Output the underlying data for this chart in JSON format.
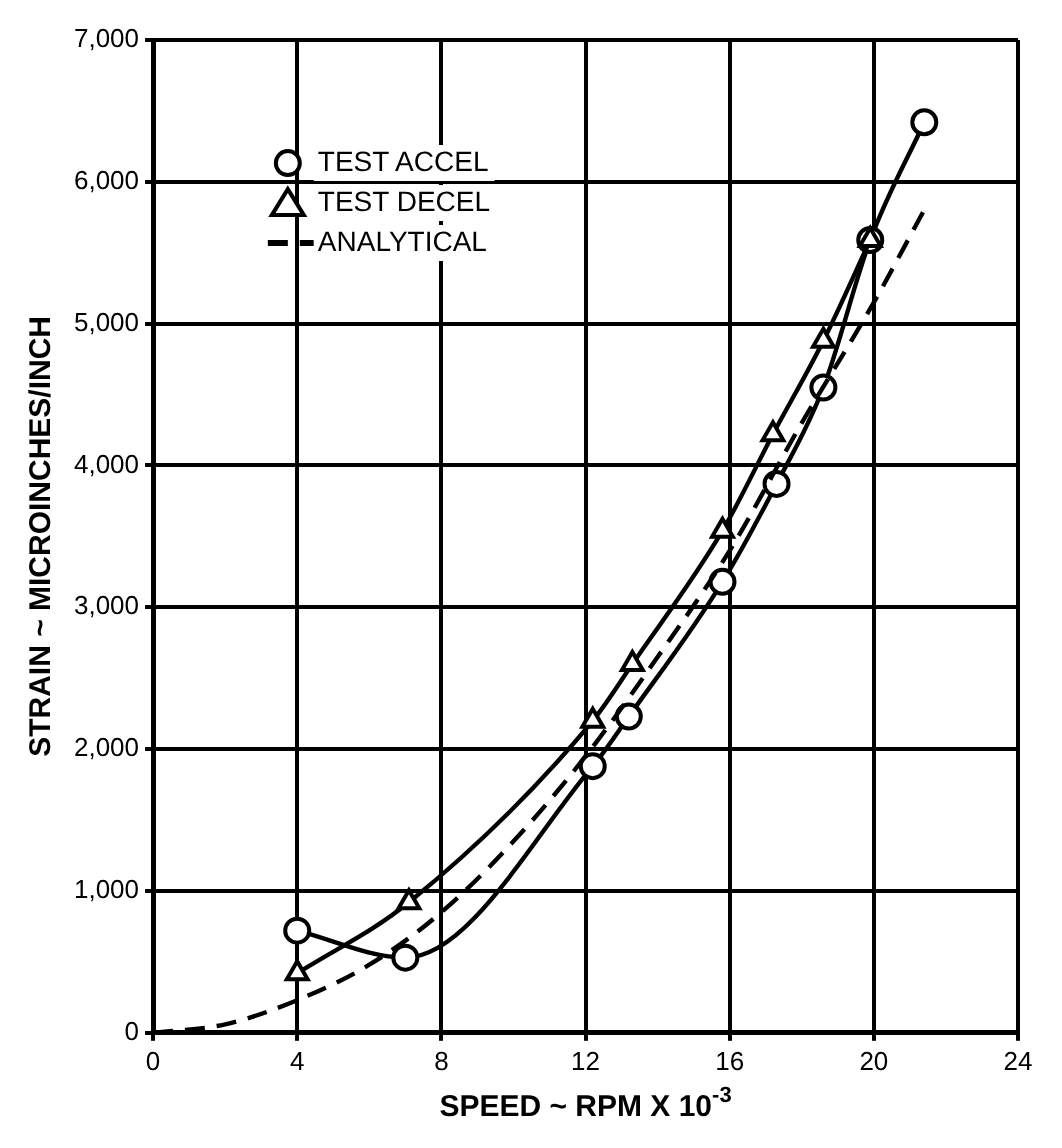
{
  "chart_data": {
    "type": "line",
    "xlabel": "SPEED ~ RPM X 10$^{-3}$",
    "ylabel": "STRAIN ~ MICROINCHES/INCH",
    "series": [
      {
        "name": "TEST ACCEL",
        "color": "#000000",
        "marker": "circle",
        "line_style": "solid",
        "x": [
          4,
          7,
          12.2,
          13.2,
          15.8,
          17.3,
          18.6,
          19.9,
          21.4
        ],
        "values": [
          720,
          530,
          1880,
          2230,
          3180,
          3870,
          4550,
          5590,
          6420
        ]
      },
      {
        "name": "TEST DECEL",
        "color": "#000000",
        "marker": "triangle",
        "line_style": "solid",
        "x": [
          4,
          7.1,
          12.2,
          13.3,
          15.8,
          17.2,
          18.6,
          19.9
        ],
        "values": [
          420,
          920,
          2200,
          2600,
          3540,
          4220,
          4880,
          5590
        ]
      },
      {
        "name": "ANALYTICAL",
        "color": "#000000",
        "marker": "none",
        "line_style": "dashed",
        "x": [
          0,
          2,
          4,
          6,
          8,
          10,
          12,
          14,
          16,
          18,
          20,
          21.5
        ],
        "values": [
          0,
          60,
          230,
          480,
          850,
          1350,
          1950,
          2650,
          3400,
          4300,
          5150,
          5850
        ]
      }
    ],
    "xlim": [
      0,
      24
    ],
    "xticks": [
      0,
      4,
      8,
      12,
      16,
      20,
      24
    ],
    "ylim": [
      0,
      7000
    ],
    "yticks": [
      0,
      {
        "value": 1000,
        "label": "1,000"
      },
      {
        "value": 2000,
        "label": "2,000"
      },
      {
        "value": 3000,
        "label": "3,000"
      },
      {
        "value": 4000,
        "label": "4,000"
      },
      {
        "value": 5000,
        "label": "5,000"
      },
      {
        "value": 6000,
        "label": "6,000"
      },
      {
        "value": 7000,
        "label": "7,000"
      }
    ],
    "grid": true,
    "legend": "top left"
  }
}
